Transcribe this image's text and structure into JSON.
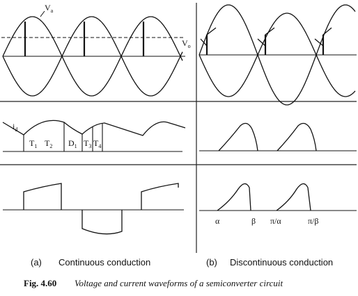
{
  "labels": {
    "va": "V",
    "va_sub": "a",
    "vo": "V",
    "vo_sub": "o",
    "id": "i",
    "id_sub": "d",
    "t1": "T",
    "t1_sub": "1",
    "t2": "T",
    "t2_sub": "2",
    "d1": "D",
    "d1_sub": "1",
    "t3": "T",
    "t3_sub": "3",
    "t4": "T",
    "t4_sub": "4",
    "alpha": "α",
    "beta": "β",
    "pi_alpha": "π/α",
    "pi_beta": "π/β"
  },
  "subcaptions": {
    "a_tag": "(a)",
    "a_text": "Continuous conduction",
    "b_tag": "(b)",
    "b_text": "Discontinuous conduction"
  },
  "caption": {
    "number": "Fig. 4.60",
    "text": "Voltage and current waveforms of a semiconverter circuit"
  }
}
